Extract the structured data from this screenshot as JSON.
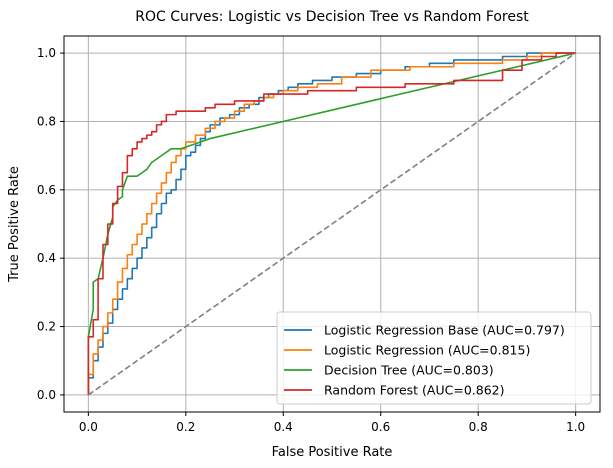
{
  "chart_data": {
    "type": "line",
    "title": "ROC Curves: Logistic vs Decision Tree vs Random Forest",
    "xlabel": "False Positive Rate",
    "ylabel": "True Positive Rate",
    "xlim": [
      -0.05,
      1.05
    ],
    "ylim": [
      -0.05,
      1.05
    ],
    "xticks": [
      0.0,
      0.2,
      0.4,
      0.6,
      0.8,
      1.0
    ],
    "yticks": [
      0.0,
      0.2,
      0.4,
      0.6,
      0.8,
      1.0
    ],
    "xtick_labels": [
      "0.0",
      "0.2",
      "0.4",
      "0.6",
      "0.8",
      "1.0"
    ],
    "ytick_labels": [
      "0.0",
      "0.2",
      "0.4",
      "0.6",
      "0.8",
      "1.0"
    ],
    "grid": true,
    "legend_position": "bottom-right",
    "series": [
      {
        "name": "Logistic Regression Base (AUC=0.797)",
        "color": "#1f77b4",
        "x": [
          0.0,
          0.0,
          0.01,
          0.01,
          0.02,
          0.02,
          0.03,
          0.03,
          0.04,
          0.04,
          0.05,
          0.05,
          0.06,
          0.06,
          0.07,
          0.07,
          0.08,
          0.08,
          0.09,
          0.09,
          0.1,
          0.1,
          0.11,
          0.11,
          0.12,
          0.12,
          0.13,
          0.13,
          0.14,
          0.14,
          0.15,
          0.15,
          0.16,
          0.16,
          0.17,
          0.17,
          0.18,
          0.18,
          0.19,
          0.19,
          0.2,
          0.2,
          0.21,
          0.21,
          0.22,
          0.22,
          0.23,
          0.23,
          0.24,
          0.24,
          0.25,
          0.25,
          0.27,
          0.27,
          0.29,
          0.29,
          0.31,
          0.31,
          0.33,
          0.33,
          0.35,
          0.35,
          0.37,
          0.37,
          0.39,
          0.39,
          0.41,
          0.41,
          0.43,
          0.43,
          0.46,
          0.46,
          0.5,
          0.5,
          0.55,
          0.55,
          0.6,
          0.6,
          0.65,
          0.65,
          0.7,
          0.7,
          0.75,
          0.75,
          0.8,
          0.8,
          0.85,
          0.85,
          0.9,
          0.9,
          0.95,
          0.95,
          1.0
        ],
        "y": [
          0.0,
          0.05,
          0.05,
          0.1,
          0.1,
          0.14,
          0.14,
          0.18,
          0.18,
          0.21,
          0.21,
          0.25,
          0.25,
          0.28,
          0.28,
          0.31,
          0.31,
          0.34,
          0.34,
          0.37,
          0.37,
          0.4,
          0.4,
          0.43,
          0.43,
          0.46,
          0.46,
          0.49,
          0.49,
          0.53,
          0.53,
          0.56,
          0.56,
          0.59,
          0.59,
          0.6,
          0.6,
          0.63,
          0.63,
          0.66,
          0.66,
          0.7,
          0.7,
          0.71,
          0.71,
          0.73,
          0.73,
          0.75,
          0.75,
          0.77,
          0.77,
          0.79,
          0.79,
          0.81,
          0.81,
          0.82,
          0.82,
          0.84,
          0.84,
          0.85,
          0.85,
          0.87,
          0.87,
          0.88,
          0.88,
          0.89,
          0.89,
          0.9,
          0.9,
          0.91,
          0.91,
          0.92,
          0.92,
          0.93,
          0.93,
          0.94,
          0.94,
          0.95,
          0.95,
          0.96,
          0.96,
          0.97,
          0.97,
          0.98,
          0.98,
          0.98,
          0.98,
          0.99,
          0.99,
          1.0,
          1.0,
          1.0,
          1.0
        ]
      },
      {
        "name": "Logistic Regression (AUC=0.815)",
        "color": "#ff7f0e",
        "x": [
          0.0,
          0.0,
          0.01,
          0.01,
          0.02,
          0.02,
          0.03,
          0.03,
          0.04,
          0.04,
          0.05,
          0.05,
          0.06,
          0.06,
          0.07,
          0.07,
          0.08,
          0.08,
          0.09,
          0.09,
          0.1,
          0.1,
          0.11,
          0.11,
          0.12,
          0.12,
          0.13,
          0.13,
          0.14,
          0.14,
          0.15,
          0.15,
          0.16,
          0.16,
          0.17,
          0.17,
          0.18,
          0.18,
          0.19,
          0.19,
          0.2,
          0.2,
          0.22,
          0.22,
          0.24,
          0.24,
          0.26,
          0.26,
          0.28,
          0.28,
          0.3,
          0.3,
          0.32,
          0.32,
          0.34,
          0.34,
          0.36,
          0.36,
          0.38,
          0.38,
          0.4,
          0.4,
          0.43,
          0.43,
          0.47,
          0.47,
          0.52,
          0.52,
          0.58,
          0.58,
          0.66,
          0.66,
          0.75,
          0.75,
          0.85,
          0.85,
          0.9,
          0.9,
          0.93,
          0.93,
          0.97,
          0.97,
          1.0
        ],
        "y": [
          0.0,
          0.06,
          0.06,
          0.12,
          0.12,
          0.16,
          0.16,
          0.2,
          0.2,
          0.24,
          0.24,
          0.28,
          0.28,
          0.33,
          0.33,
          0.37,
          0.37,
          0.41,
          0.41,
          0.44,
          0.44,
          0.47,
          0.47,
          0.5,
          0.5,
          0.53,
          0.53,
          0.56,
          0.56,
          0.59,
          0.59,
          0.62,
          0.62,
          0.65,
          0.65,
          0.68,
          0.68,
          0.7,
          0.7,
          0.72,
          0.72,
          0.74,
          0.74,
          0.76,
          0.76,
          0.78,
          0.78,
          0.8,
          0.8,
          0.81,
          0.81,
          0.83,
          0.83,
          0.85,
          0.85,
          0.86,
          0.86,
          0.87,
          0.87,
          0.88,
          0.88,
          0.89,
          0.89,
          0.9,
          0.9,
          0.91,
          0.91,
          0.93,
          0.93,
          0.95,
          0.95,
          0.96,
          0.96,
          0.97,
          0.97,
          0.98,
          0.98,
          0.99,
          0.99,
          1.0,
          1.0,
          1.0,
          1.0
        ]
      },
      {
        "name": "Decision Tree (AUC=0.803)",
        "color": "#2ca02c",
        "x": [
          0.0,
          0.0,
          0.01,
          0.01,
          0.02,
          0.02,
          0.03,
          0.04,
          0.05,
          0.05,
          0.06,
          0.07,
          0.07,
          0.08,
          0.09,
          0.1,
          0.11,
          0.12,
          0.13,
          0.15,
          0.17,
          0.19,
          0.21,
          0.23,
          0.25,
          1.0
        ],
        "y": [
          0.0,
          0.17,
          0.25,
          0.33,
          0.34,
          0.34,
          0.4,
          0.47,
          0.52,
          0.55,
          0.57,
          0.58,
          0.6,
          0.64,
          0.64,
          0.64,
          0.65,
          0.66,
          0.68,
          0.7,
          0.72,
          0.72,
          0.73,
          0.74,
          0.75,
          1.0
        ]
      },
      {
        "name": "Random Forest (AUC=0.862)",
        "color": "#d62728",
        "x": [
          0.0,
          0.0,
          0.01,
          0.01,
          0.02,
          0.02,
          0.03,
          0.03,
          0.04,
          0.04,
          0.05,
          0.05,
          0.06,
          0.06,
          0.07,
          0.07,
          0.08,
          0.08,
          0.09,
          0.09,
          0.1,
          0.1,
          0.11,
          0.11,
          0.12,
          0.12,
          0.13,
          0.13,
          0.14,
          0.14,
          0.15,
          0.15,
          0.16,
          0.16,
          0.18,
          0.18,
          0.24,
          0.24,
          0.26,
          0.26,
          0.3,
          0.3,
          0.36,
          0.36,
          0.45,
          0.45,
          0.55,
          0.55,
          0.65,
          0.65,
          0.75,
          0.75,
          0.85,
          0.85,
          0.89,
          0.89,
          0.93,
          0.93,
          0.96,
          0.96,
          1.0
        ],
        "y": [
          0.0,
          0.17,
          0.17,
          0.22,
          0.22,
          0.34,
          0.34,
          0.44,
          0.44,
          0.5,
          0.5,
          0.56,
          0.56,
          0.61,
          0.61,
          0.65,
          0.65,
          0.7,
          0.7,
          0.72,
          0.72,
          0.74,
          0.74,
          0.75,
          0.75,
          0.76,
          0.76,
          0.77,
          0.77,
          0.79,
          0.79,
          0.8,
          0.8,
          0.82,
          0.82,
          0.83,
          0.83,
          0.84,
          0.84,
          0.85,
          0.85,
          0.86,
          0.86,
          0.88,
          0.88,
          0.89,
          0.89,
          0.9,
          0.9,
          0.91,
          0.91,
          0.92,
          0.92,
          0.95,
          0.95,
          0.98,
          0.98,
          0.99,
          0.99,
          1.0,
          1.0
        ]
      },
      {
        "name": "",
        "color": "#808080",
        "dashed": true,
        "x": [
          0.0,
          1.0
        ],
        "y": [
          0.0,
          1.0
        ]
      }
    ]
  }
}
